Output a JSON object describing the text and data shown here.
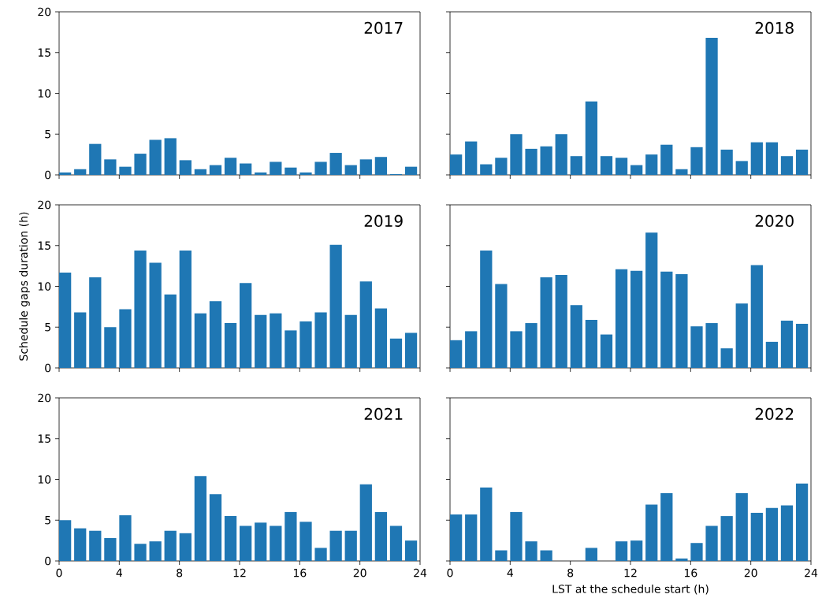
{
  "chart_data": [
    {
      "type": "bar",
      "title": "2017",
      "x": [
        0.4,
        1.4,
        2.4,
        3.4,
        4.4,
        5.4,
        6.4,
        7.4,
        8.4,
        9.4,
        10.4,
        11.4,
        12.4,
        13.4,
        14.4,
        15.4,
        16.4,
        17.4,
        18.4,
        19.4,
        20.4,
        21.4,
        22.4,
        23.4
      ],
      "values": [
        0.3,
        0.7,
        3.8,
        1.9,
        1.0,
        2.6,
        4.3,
        4.5,
        1.8,
        0.7,
        1.2,
        2.1,
        1.4,
        0.3,
        1.6,
        0.9,
        0.3,
        1.6,
        2.7,
        1.2,
        1.9,
        2.2,
        0.1,
        1.0
      ],
      "color": "#1f77b4",
      "xlim": [
        0,
        24
      ],
      "ylim": [
        0,
        20
      ],
      "xticks": [
        0,
        4,
        8,
        12,
        16,
        20,
        24
      ],
      "yticks": [
        0,
        5,
        10,
        15,
        20
      ],
      "tick_labels": "y"
    },
    {
      "type": "bar",
      "title": "2018",
      "x": [
        0.4,
        1.4,
        2.4,
        3.4,
        4.4,
        5.4,
        6.4,
        7.4,
        8.4,
        9.4,
        10.4,
        11.4,
        12.4,
        13.4,
        14.4,
        15.4,
        16.4,
        17.4,
        18.4,
        19.4,
        20.4,
        21.4,
        22.4,
        23.4
      ],
      "values": [
        2.5,
        4.1,
        1.3,
        2.1,
        5.0,
        3.2,
        3.5,
        5.0,
        2.3,
        9.0,
        2.3,
        2.1,
        1.2,
        2.5,
        3.7,
        0.7,
        3.4,
        16.8,
        3.1,
        1.7,
        4.0,
        4.0,
        2.3,
        3.1
      ],
      "color": "#1f77b4",
      "xlim": [
        0,
        24
      ],
      "ylim": [
        0,
        20
      ],
      "xticks": [
        0,
        4,
        8,
        12,
        16,
        20,
        24
      ],
      "yticks": [
        0,
        5,
        10,
        15,
        20
      ],
      "tick_labels": false
    },
    {
      "type": "bar",
      "title": "2019",
      "ylabel": "Schedule gaps duration (h)",
      "x": [
        0.4,
        1.4,
        2.4,
        3.4,
        4.4,
        5.4,
        6.4,
        7.4,
        8.4,
        9.4,
        10.4,
        11.4,
        12.4,
        13.4,
        14.4,
        15.4,
        16.4,
        17.4,
        18.4,
        19.4,
        20.4,
        21.4,
        22.4,
        23.4
      ],
      "values": [
        11.7,
        6.8,
        11.1,
        5.0,
        7.2,
        14.4,
        12.9,
        9.0,
        14.4,
        6.7,
        8.2,
        5.5,
        10.4,
        6.5,
        6.7,
        4.6,
        5.7,
        6.8,
        15.1,
        6.5,
        10.6,
        7.3,
        3.6,
        4.3
      ],
      "color": "#1f77b4",
      "xlim": [
        0,
        24
      ],
      "ylim": [
        0,
        20
      ],
      "xticks": [
        0,
        4,
        8,
        12,
        16,
        20,
        24
      ],
      "yticks": [
        0,
        5,
        10,
        15,
        20
      ],
      "tick_labels": "y"
    },
    {
      "type": "bar",
      "title": "2020",
      "x": [
        0.4,
        1.4,
        2.4,
        3.4,
        4.4,
        5.4,
        6.4,
        7.4,
        8.4,
        9.4,
        10.4,
        11.4,
        12.4,
        13.4,
        14.4,
        15.4,
        16.4,
        17.4,
        18.4,
        19.4,
        20.4,
        21.4,
        22.4,
        23.4
      ],
      "values": [
        3.4,
        4.5,
        14.4,
        10.3,
        4.5,
        5.5,
        11.1,
        11.4,
        7.7,
        5.9,
        4.1,
        12.1,
        11.9,
        16.6,
        11.8,
        11.5,
        5.1,
        5.5,
        2.4,
        7.9,
        12.6,
        3.2,
        5.8,
        5.4
      ],
      "color": "#1f77b4",
      "xlim": [
        0,
        24
      ],
      "ylim": [
        0,
        20
      ],
      "xticks": [
        0,
        4,
        8,
        12,
        16,
        20,
        24
      ],
      "yticks": [
        0,
        5,
        10,
        15,
        20
      ],
      "tick_labels": false
    },
    {
      "type": "bar",
      "title": "2021",
      "x": [
        0.4,
        1.4,
        2.4,
        3.4,
        4.4,
        5.4,
        6.4,
        7.4,
        8.4,
        9.4,
        10.4,
        11.4,
        12.4,
        13.4,
        14.4,
        15.4,
        16.4,
        17.4,
        18.4,
        19.4,
        20.4,
        21.4,
        22.4,
        23.4
      ],
      "values": [
        5.0,
        4.0,
        3.7,
        2.8,
        5.6,
        2.1,
        2.4,
        3.7,
        3.4,
        10.4,
        8.2,
        5.5,
        4.3,
        4.7,
        4.3,
        6.0,
        4.8,
        1.6,
        3.7,
        3.7,
        9.4,
        6.0,
        4.3,
        2.5
      ],
      "color": "#1f77b4",
      "xlim": [
        0,
        24
      ],
      "ylim": [
        0,
        20
      ],
      "xticks": [
        0,
        4,
        8,
        12,
        16,
        20,
        24
      ],
      "yticks": [
        0,
        5,
        10,
        15,
        20
      ]
    },
    {
      "type": "bar",
      "title": "2022",
      "xlabel": "LST at the schedule start (h)",
      "x": [
        0.4,
        1.4,
        2.4,
        3.4,
        4.4,
        5.4,
        6.4,
        7.4,
        8.4,
        9.4,
        10.4,
        11.4,
        12.4,
        13.4,
        14.4,
        15.4,
        16.4,
        17.4,
        18.4,
        19.4,
        20.4,
        21.4,
        22.4,
        23.4
      ],
      "values": [
        5.7,
        5.7,
        9.0,
        1.3,
        6.0,
        2.4,
        1.3,
        0,
        0,
        1.6,
        0,
        2.4,
        2.5,
        6.9,
        8.3,
        0.3,
        2.2,
        4.3,
        5.5,
        8.3,
        5.9,
        6.5,
        6.8,
        9.5
      ],
      "color": "#1f77b4",
      "xlim": [
        0,
        24
      ],
      "ylim": [
        0,
        20
      ],
      "xticks": [
        0,
        4,
        8,
        12,
        16,
        20,
        24
      ],
      "yticks": [
        0,
        5,
        10,
        15,
        20
      ],
      "tick_labels": "x"
    }
  ]
}
